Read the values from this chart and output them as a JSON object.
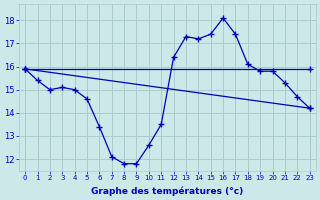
{
  "xlabel": "Graphe des températures (°c)",
  "background_color": "#cce8e8",
  "grid_color": "#aacccc",
  "line_color": "#0000bb",
  "x_ticks": [
    0,
    1,
    2,
    3,
    4,
    5,
    6,
    7,
    8,
    9,
    10,
    11,
    12,
    13,
    14,
    15,
    16,
    17,
    18,
    19,
    20,
    21,
    22,
    23
  ],
  "ylim": [
    11.5,
    18.7
  ],
  "yticks": [
    12,
    13,
    14,
    15,
    16,
    17,
    18
  ],
  "line1_x": [
    0,
    1,
    2,
    3,
    4,
    5,
    6,
    7,
    8,
    9,
    10,
    11,
    12,
    13,
    14,
    15,
    16,
    17,
    18,
    19,
    20,
    21,
    22,
    23
  ],
  "line1_y": [
    15.9,
    15.4,
    15.0,
    15.1,
    15.0,
    14.6,
    13.4,
    12.1,
    11.8,
    11.8,
    12.6,
    13.5,
    16.4,
    17.3,
    17.2,
    17.4,
    18.1,
    17.4,
    16.1,
    15.8,
    15.8,
    15.3,
    14.7,
    14.2
  ],
  "line2_x": [
    0,
    23
  ],
  "line2_y": [
    15.9,
    15.9
  ],
  "line3_x": [
    0,
    23
  ],
  "line3_y": [
    15.9,
    14.2
  ]
}
